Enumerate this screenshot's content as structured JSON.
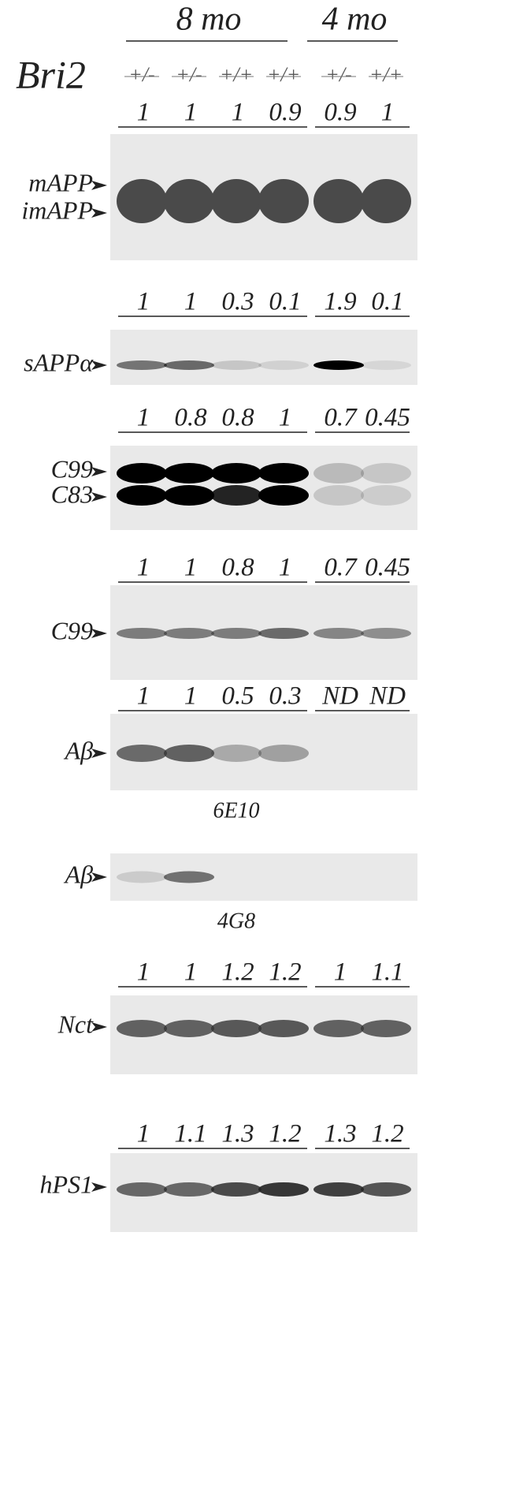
{
  "header": {
    "label": "Bri2",
    "groups": [
      {
        "label": "8 mo"
      },
      {
        "label": "4 mo"
      }
    ],
    "genotypes": [
      "+/-",
      "+/-",
      "+/+",
      "+/+",
      "+/-",
      "+/+"
    ]
  },
  "panels": [
    {
      "quantification": [
        "1",
        "1",
        "1",
        "0.9",
        "0.9",
        "1"
      ],
      "markers": [
        "mAPP",
        "imAPP"
      ]
    },
    {
      "quantification": [
        "1",
        "1",
        "0.3",
        "0.1",
        "1.9",
        "0.1"
      ],
      "markers": [
        "sAPPα"
      ]
    },
    {
      "quantification": [
        "1",
        "0.8",
        "0.8",
        "1",
        "0.7",
        "0.45"
      ],
      "markers": [
        "C99",
        "C83"
      ]
    },
    {
      "quantification": [
        "1",
        "1",
        "0.8",
        "1",
        "0.7",
        "0.45"
      ],
      "markers": [
        "C99"
      ]
    },
    {
      "quantification": [
        "1",
        "1",
        "0.5",
        "0.3",
        "ND",
        "ND"
      ],
      "markers": [
        "Aβ"
      ],
      "antibody": "6E10"
    },
    {
      "markers": [
        "Aβ"
      ],
      "antibody": "4G8"
    },
    {
      "quantification": [
        "1",
        "1",
        "1.2",
        "1.2",
        "1",
        "1.1"
      ],
      "markers": [
        "Nct"
      ]
    },
    {
      "quantification": [
        "1",
        "1.1",
        "1.3",
        "1.2",
        "1.3",
        "1.2"
      ],
      "markers": [
        "hPS1"
      ]
    }
  ]
}
